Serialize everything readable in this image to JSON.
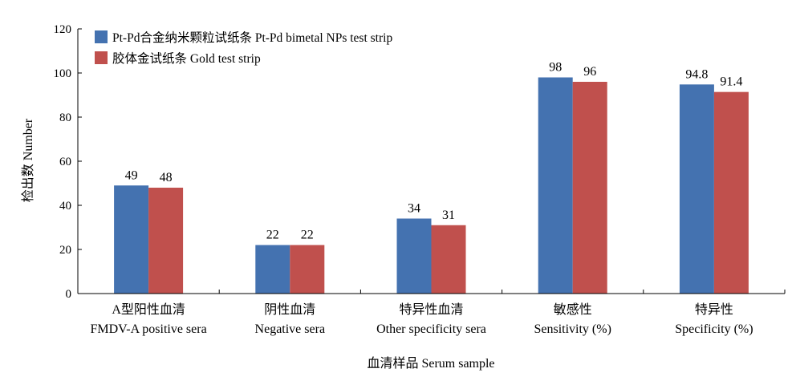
{
  "chart_data": {
    "type": "bar",
    "categories": [
      [
        "A型阳性血清",
        "FMDV-A positive sera"
      ],
      [
        "阴性血清",
        "Negative sera"
      ],
      [
        "特异性血清",
        "Other specificity sera"
      ],
      [
        "敏感性",
        "Sensitivity (%)"
      ],
      [
        "特异性",
        "Specificity (%)"
      ]
    ],
    "series": [
      {
        "name": "Pt-Pd合金纳米颗粒试纸条 Pt-Pd bimetal NPs test strip",
        "color": "#4472b0",
        "values": [
          49,
          22,
          34,
          98,
          94.8
        ],
        "labels": [
          "49",
          "22",
          "34",
          "98",
          "94.8"
        ]
      },
      {
        "name": "胶体金试纸条 Gold test strip",
        "color": "#c0504d",
        "values": [
          48,
          22,
          31,
          96,
          91.4
        ],
        "labels": [
          "48",
          "22",
          "31",
          "96",
          "91.4"
        ]
      }
    ],
    "xlabel": "血清样品 Serum sample",
    "ylabel": "检出数 Number",
    "ylim": [
      0,
      120
    ],
    "yticks": [
      0,
      20,
      40,
      60,
      80,
      100,
      120
    ],
    "grid": false,
    "legend": "top-left"
  }
}
